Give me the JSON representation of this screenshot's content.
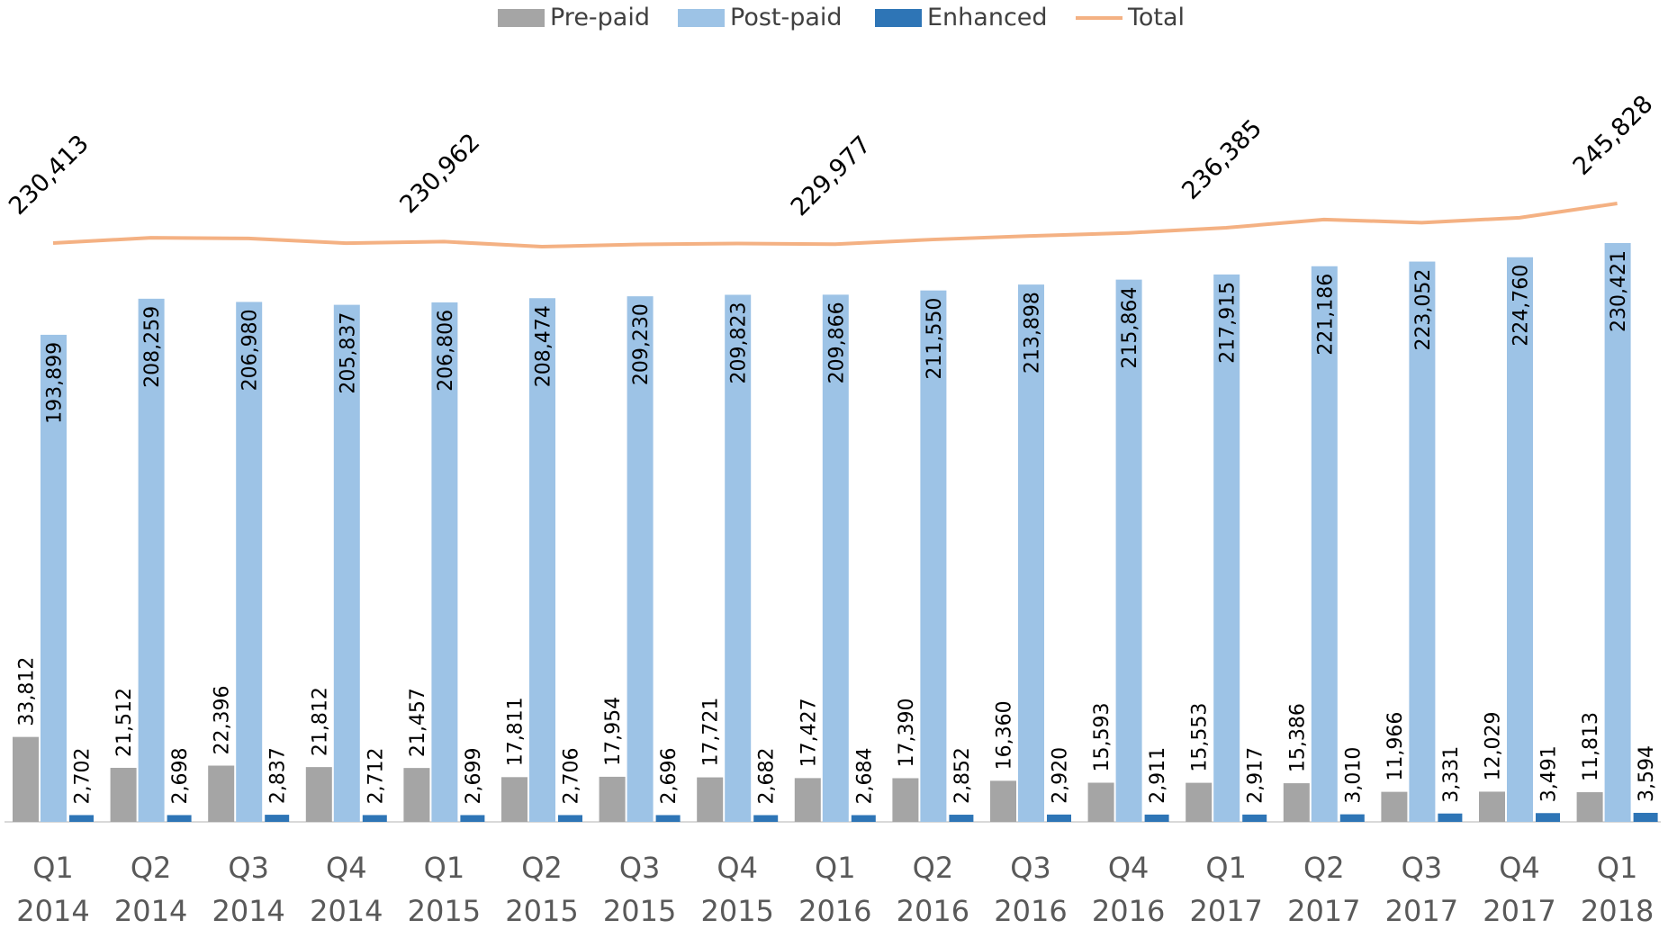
{
  "chart_data": {
    "type": "bar",
    "title": "",
    "xlabel": "",
    "ylabel": "",
    "ylim": [
      0,
      260000
    ],
    "grid": false,
    "legend_placement": "top-center",
    "categories": [
      [
        "Q1",
        "2014"
      ],
      [
        "Q2",
        "2014"
      ],
      [
        "Q3",
        "2014"
      ],
      [
        "Q4",
        "2014"
      ],
      [
        "Q1",
        "2015"
      ],
      [
        "Q2",
        "2015"
      ],
      [
        "Q3",
        "2015"
      ],
      [
        "Q4",
        "2015"
      ],
      [
        "Q1",
        "2016"
      ],
      [
        "Q2",
        "2016"
      ],
      [
        "Q3",
        "2016"
      ],
      [
        "Q4",
        "2016"
      ],
      [
        "Q1",
        "2017"
      ],
      [
        "Q2",
        "2017"
      ],
      [
        "Q3",
        "2017"
      ],
      [
        "Q4",
        "2017"
      ],
      [
        "Q1",
        "2018"
      ]
    ],
    "series": [
      {
        "name": "Pre-paid",
        "kind": "bar",
        "color": "#a5a5a5",
        "values": [
          33812,
          21512,
          22396,
          21812,
          21457,
          17811,
          17954,
          17721,
          17427,
          17390,
          16360,
          15593,
          15553,
          15386,
          11966,
          12029,
          11813
        ],
        "labels": [
          "33,812",
          "21,512",
          "22,396",
          "21,812",
          "21,457",
          "17,811",
          "17,954",
          "17,721",
          "17,427",
          "17,390",
          "16,360",
          "15,593",
          "15,553",
          "15,386",
          "11,966",
          "12,029",
          "11,813"
        ]
      },
      {
        "name": "Post-paid",
        "kind": "bar",
        "color": "#9dc3e6",
        "values": [
          193899,
          208259,
          206980,
          205837,
          206806,
          208474,
          209230,
          209823,
          209866,
          211550,
          213898,
          215864,
          217915,
          221186,
          223052,
          224760,
          230421
        ],
        "labels": [
          "193,899",
          "208,259",
          "206,980",
          "205,837",
          "206,806",
          "208,474",
          "209,230",
          "209,823",
          "209,866",
          "211,550",
          "213,898",
          "215,864",
          "217,915",
          "221,186",
          "223,052",
          "224,760",
          "230,421"
        ]
      },
      {
        "name": "Enhanced",
        "kind": "bar",
        "color": "#2e75b6",
        "values": [
          2702,
          2698,
          2837,
          2712,
          2699,
          2706,
          2696,
          2682,
          2684,
          2852,
          2920,
          2911,
          2917,
          3010,
          3331,
          3491,
          3594
        ],
        "labels": [
          "2,702",
          "2,698",
          "2,837",
          "2,712",
          "2,699",
          "2,706",
          "2,696",
          "2,682",
          "2,684",
          "2,852",
          "2,920",
          "2,911",
          "2,917",
          "3,010",
          "3,331",
          "3,491",
          "3,594"
        ]
      },
      {
        "name": "Total",
        "kind": "line",
        "color": "#f4b183",
        "values": [
          230413,
          232469,
          232213,
          230361,
          230962,
          228991,
          229880,
          230226,
          229977,
          231792,
          233178,
          234368,
          236385,
          239582,
          238349,
          240280,
          245828
        ],
        "labels": [
          "230,413",
          null,
          null,
          null,
          "230,962",
          null,
          null,
          null,
          "229,977",
          null,
          null,
          null,
          "236,385",
          null,
          null,
          null,
          "245,828"
        ]
      }
    ]
  }
}
